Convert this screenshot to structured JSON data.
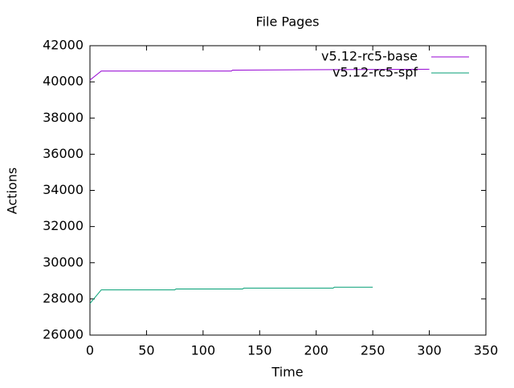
{
  "chart_data": {
    "type": "line",
    "title": "File Pages",
    "x_label": "Time",
    "y_label": "Actions",
    "series": [
      {
        "name": "v5.12-rc5-base",
        "color": "#9400d3",
        "x": [
          0,
          10,
          125,
          126,
          300
        ],
        "values": [
          40100,
          40600,
          40600,
          40650,
          40700
        ]
      },
      {
        "name": "v5.12-rc5-spf",
        "color": "#009e73",
        "x": [
          0,
          10,
          75,
          76,
          135,
          136,
          215,
          216,
          250
        ],
        "values": [
          27750,
          28500,
          28500,
          28550,
          28550,
          28600,
          28600,
          28650,
          28650
        ]
      }
    ],
    "xlim": [
      0,
      350
    ],
    "xticks": [
      0,
      50,
      100,
      150,
      200,
      250,
      300,
      350
    ],
    "ylim": [
      26000,
      42000
    ],
    "yticks": [
      26000,
      28000,
      30000,
      32000,
      34000,
      36000,
      38000,
      40000,
      42000
    ],
    "legend": "top-right"
  }
}
